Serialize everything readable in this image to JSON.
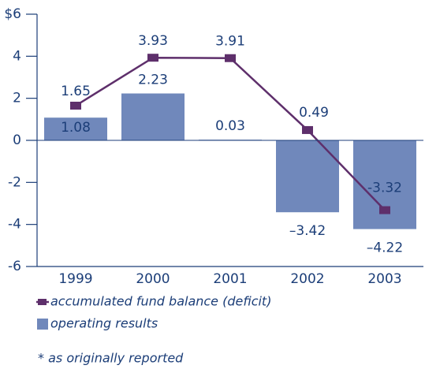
{
  "chart_data": {
    "type": "bar",
    "categories": [
      "1999",
      "2000",
      "2001",
      "2002",
      "2003"
    ],
    "series": [
      {
        "name": "operating results",
        "type": "bar",
        "color": "#7088bb",
        "values": [
          1.08,
          2.23,
          0.03,
          -3.42,
          -4.22
        ],
        "value_labels": [
          "1.08",
          "2.23",
          "0.03",
          "–3.42",
          "–4.22"
        ]
      },
      {
        "name": "accumulated fund balance (deficit)",
        "type": "line",
        "color": "#5e2f6b",
        "values": [
          1.65,
          3.93,
          3.91,
          0.49,
          -3.32
        ]
      }
    ],
    "ylim": [
      -6,
      6
    ],
    "yticks": [
      {
        "value": 6,
        "label": "$6"
      },
      4,
      2,
      0,
      -2,
      -4,
      -6
    ],
    "note": "* as originally reported"
  }
}
